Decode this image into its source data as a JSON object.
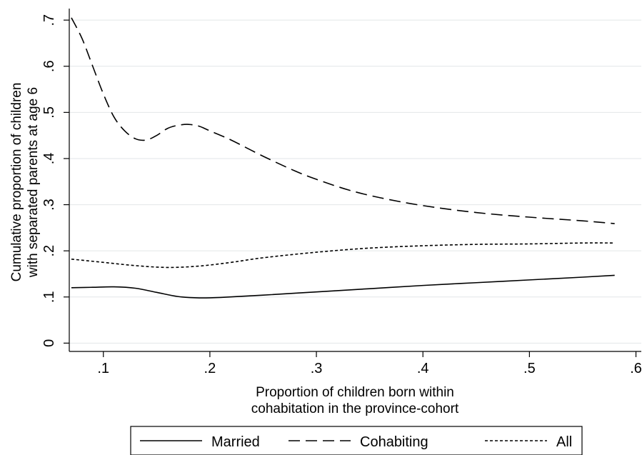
{
  "chart_data": {
    "type": "line",
    "title": "",
    "xlabel": [
      "Proportion of children born within",
      "cohabitation in the province-cohort"
    ],
    "ylabel": [
      "Cumulative proportion of children",
      "with separated parents at age 6"
    ],
    "xlim": [
      0.068,
      0.605
    ],
    "ylim": [
      -0.018,
      0.725
    ],
    "xticks": [
      0.1,
      0.2,
      0.3,
      0.4,
      0.5,
      0.6
    ],
    "xtick_labels": [
      ".1",
      ".2",
      ".3",
      ".4",
      ".5",
      ".6"
    ],
    "yticks": [
      0,
      0.1,
      0.2,
      0.3,
      0.4,
      0.5,
      0.6,
      0.7
    ],
    "ytick_labels": [
      "0",
      ".1",
      ".2",
      ".3",
      ".4",
      ".5",
      ".6",
      ".7"
    ],
    "grid": "horizontal",
    "legend_position": "bottom",
    "series": [
      {
        "name": "Married",
        "dash": "solid",
        "x": [
          0.07,
          0.09,
          0.11,
          0.13,
          0.15,
          0.17,
          0.19,
          0.21,
          0.25,
          0.3,
          0.35,
          0.4,
          0.45,
          0.5,
          0.55,
          0.58
        ],
        "y": [
          0.12,
          0.121,
          0.122,
          0.119,
          0.11,
          0.101,
          0.098,
          0.099,
          0.104,
          0.111,
          0.118,
          0.125,
          0.131,
          0.137,
          0.143,
          0.147
        ]
      },
      {
        "name": "Cohabiting",
        "dash": "long-dash",
        "x": [
          0.07,
          0.08,
          0.09,
          0.1,
          0.11,
          0.12,
          0.13,
          0.14,
          0.15,
          0.16,
          0.17,
          0.18,
          0.19,
          0.2,
          0.22,
          0.25,
          0.28,
          0.3,
          0.33,
          0.36,
          0.4,
          0.45,
          0.5,
          0.55,
          0.58
        ],
        "y": [
          0.705,
          0.66,
          0.6,
          0.54,
          0.49,
          0.46,
          0.443,
          0.44,
          0.45,
          0.465,
          0.472,
          0.474,
          0.47,
          0.46,
          0.44,
          0.405,
          0.373,
          0.355,
          0.332,
          0.315,
          0.298,
          0.283,
          0.273,
          0.265,
          0.259
        ]
      },
      {
        "name": "All",
        "dash": "short-dash",
        "x": [
          0.07,
          0.1,
          0.13,
          0.16,
          0.19,
          0.22,
          0.25,
          0.3,
          0.35,
          0.4,
          0.45,
          0.5,
          0.55,
          0.58
        ],
        "y": [
          0.182,
          0.175,
          0.168,
          0.164,
          0.167,
          0.175,
          0.185,
          0.197,
          0.206,
          0.211,
          0.214,
          0.215,
          0.217,
          0.217
        ]
      }
    ]
  }
}
